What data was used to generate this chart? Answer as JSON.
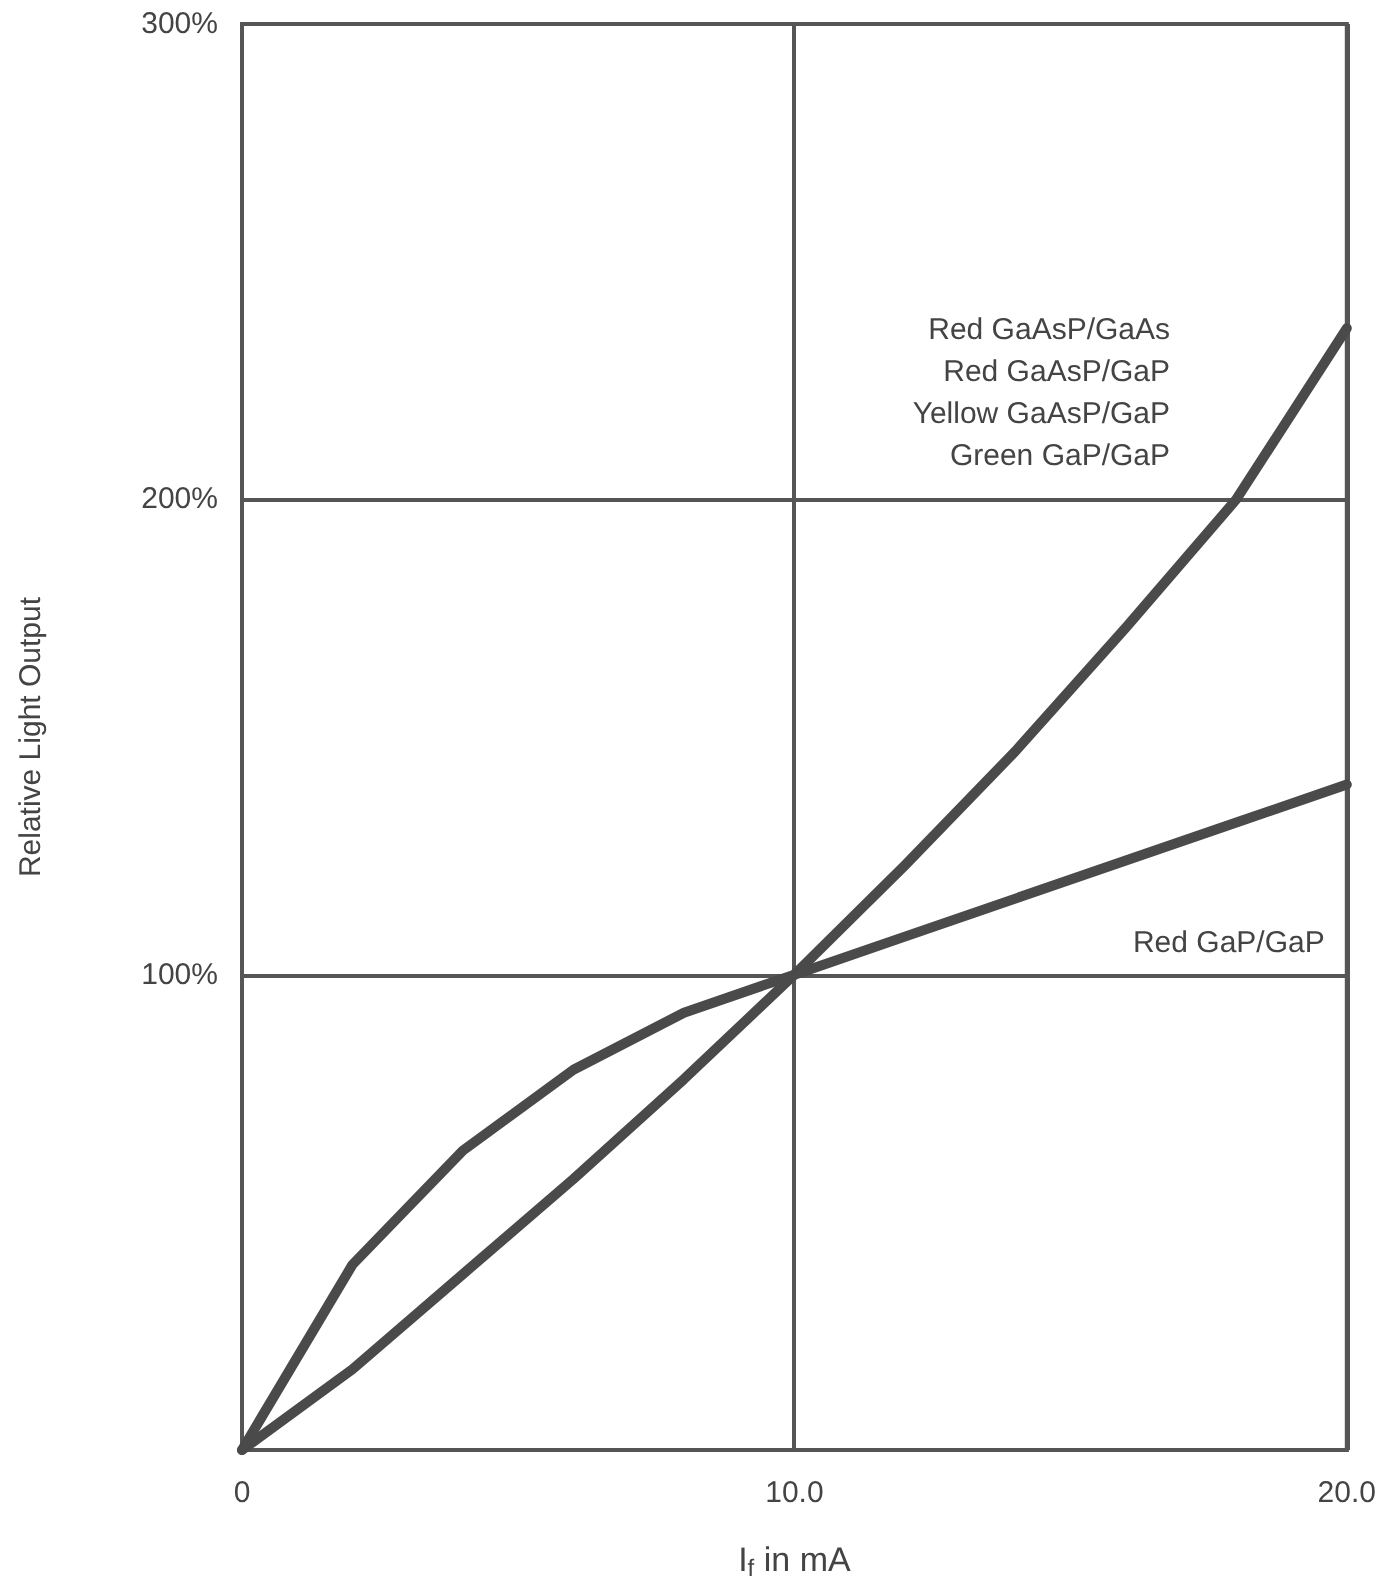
{
  "chart_data": {
    "type": "line",
    "xlabel": "I$_{f}$ in mA",
    "ylabel": "Relative Light Output",
    "x": [
      0,
      2,
      4,
      6,
      8,
      10,
      12,
      14,
      16,
      18,
      20
    ],
    "series": [
      {
        "name": "Red GaAsP/GaAs\nRed GaAsP/GaP\nYellow GaAsP/GaP\nGreen GaP/GaP",
        "color": "#4a4a4a",
        "values": [
          0,
          17,
          37,
          57,
          78,
          100,
          123,
          147,
          173,
          200,
          236
        ]
      },
      {
        "name": "Red GaP/GaP",
        "color": "#4a4a4a",
        "values": [
          0,
          39,
          63,
          80,
          92,
          100,
          108,
          116,
          124,
          132,
          140
        ]
      }
    ],
    "xlim": [
      0,
      20
    ],
    "xticks": [
      0,
      {
        "value": 10,
        "label": "10.0"
      },
      {
        "value": 20,
        "label": "20.0"
      }
    ],
    "ylim": [
      0,
      300
    ],
    "yticks": [
      {
        "value": 0,
        "label": null
      },
      {
        "value": 100,
        "label": "100%"
      },
      {
        "value": 200,
        "label": "200%"
      },
      {
        "value": 300,
        "label": "300%"
      }
    ],
    "grid": true,
    "legend": false,
    "marker": "none",
    "line_style": "solid"
  }
}
